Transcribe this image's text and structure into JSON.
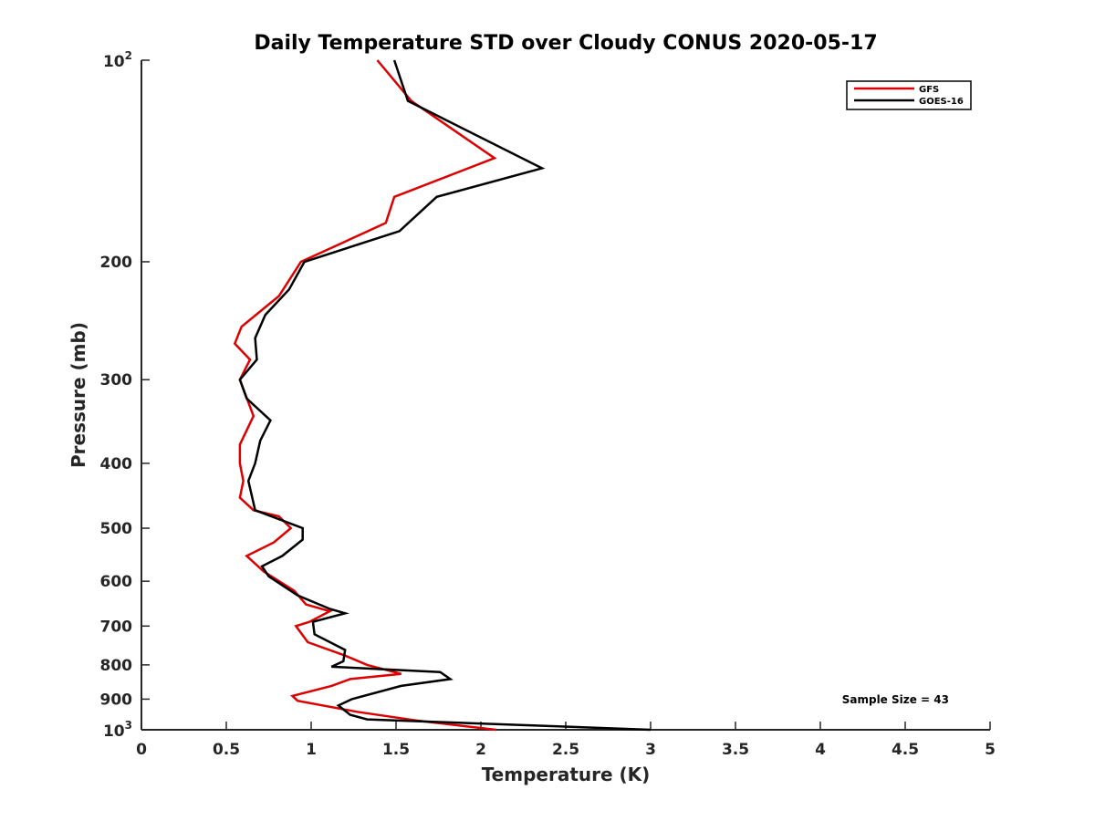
{
  "chart_data": {
    "type": "line",
    "title": "Daily Temperature STD over Cloudy CONUS 2020-05-17",
    "xlabel": "Temperature (K)",
    "ylabel": "Pressure (mb)",
    "xlim": [
      0,
      5
    ],
    "ylim": [
      100,
      1000
    ],
    "y_scale": "log",
    "y_reversed": true,
    "grid": false,
    "legend_position": "top-right",
    "x_ticks": [
      "0",
      "0.5",
      "1",
      "1.5",
      "2",
      "2.5",
      "3",
      "3.5",
      "4",
      "4.5",
      "5"
    ],
    "y_ticks": [
      {
        "value": 100,
        "base": "10",
        "exp": "2"
      },
      {
        "value": 200,
        "label": "200"
      },
      {
        "value": 300,
        "label": "300"
      },
      {
        "value": 400,
        "label": "400"
      },
      {
        "value": 500,
        "label": "500"
      },
      {
        "value": 600,
        "label": "600"
      },
      {
        "value": 700,
        "label": "700"
      },
      {
        "value": 800,
        "label": "800"
      },
      {
        "value": 900,
        "label": "900"
      },
      {
        "value": 1000,
        "base": "10",
        "exp": "3"
      }
    ],
    "series": [
      {
        "name": "GFS",
        "color": "#dd0000",
        "points": [
          [
            1.39,
            100
          ],
          [
            1.59,
            115
          ],
          [
            2.08,
            140
          ],
          [
            1.49,
            160
          ],
          [
            1.44,
            175
          ],
          [
            0.94,
            200
          ],
          [
            0.81,
            225
          ],
          [
            0.59,
            250
          ],
          [
            0.55,
            265
          ],
          [
            0.64,
            280
          ],
          [
            0.58,
            300
          ],
          [
            0.66,
            340
          ],
          [
            0.58,
            375
          ],
          [
            0.58,
            400
          ],
          [
            0.6,
            425
          ],
          [
            0.58,
            450
          ],
          [
            0.66,
            470
          ],
          [
            0.81,
            480
          ],
          [
            0.88,
            500
          ],
          [
            0.78,
            525
          ],
          [
            0.62,
            550
          ],
          [
            0.72,
            580
          ],
          [
            0.9,
            620
          ],
          [
            0.97,
            650
          ],
          [
            1.11,
            665
          ],
          [
            0.99,
            690
          ],
          [
            0.91,
            700
          ],
          [
            0.98,
            740
          ],
          [
            1.2,
            775
          ],
          [
            1.33,
            800
          ],
          [
            1.53,
            825
          ],
          [
            1.23,
            840
          ],
          [
            1.12,
            860
          ],
          [
            0.89,
            890
          ],
          [
            0.92,
            905
          ],
          [
            1.27,
            940
          ],
          [
            1.64,
            970
          ],
          [
            2.09,
            1000
          ]
        ]
      },
      {
        "name": "GOES-16",
        "color": "#000000",
        "points": [
          [
            1.49,
            100
          ],
          [
            1.57,
            115
          ],
          [
            2.36,
            145
          ],
          [
            1.74,
            160
          ],
          [
            1.52,
            180
          ],
          [
            0.96,
            200
          ],
          [
            0.87,
            220
          ],
          [
            0.73,
            240
          ],
          [
            0.67,
            260
          ],
          [
            0.68,
            280
          ],
          [
            0.58,
            300
          ],
          [
            0.62,
            320
          ],
          [
            0.76,
            345
          ],
          [
            0.7,
            370
          ],
          [
            0.67,
            400
          ],
          [
            0.63,
            425
          ],
          [
            0.67,
            470
          ],
          [
            0.95,
            500
          ],
          [
            0.95,
            520
          ],
          [
            0.83,
            550
          ],
          [
            0.71,
            570
          ],
          [
            0.75,
            590
          ],
          [
            0.92,
            630
          ],
          [
            1.11,
            660
          ],
          [
            1.2,
            670
          ],
          [
            1.01,
            690
          ],
          [
            1.02,
            720
          ],
          [
            1.2,
            760
          ],
          [
            1.19,
            790
          ],
          [
            1.12,
            805
          ],
          [
            1.76,
            820
          ],
          [
            1.82,
            840
          ],
          [
            1.53,
            860
          ],
          [
            1.24,
            900
          ],
          [
            1.16,
            920
          ],
          [
            1.23,
            950
          ],
          [
            1.33,
            965
          ],
          [
            3.0,
            1000
          ]
        ]
      }
    ],
    "annotations": [
      {
        "text": "Sample Size = 43",
        "position": "bottom-right"
      }
    ]
  }
}
